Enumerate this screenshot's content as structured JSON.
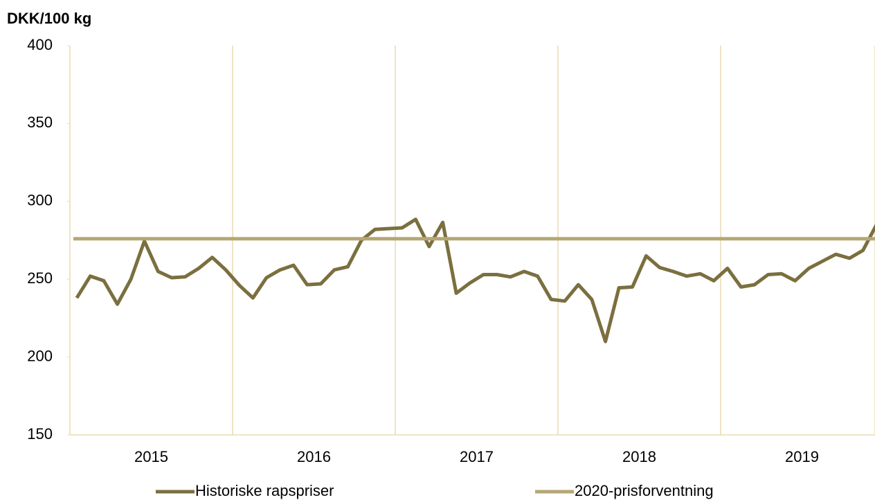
{
  "chart_data": {
    "type": "line",
    "y_label": "DKK/100 kg",
    "categories": [
      "2015",
      "2016",
      "2017",
      "2018",
      "2019"
    ],
    "xlim": [
      2015,
      2020
    ],
    "x": [
      2015.042,
      2015.125,
      2015.208,
      2015.292,
      2015.375,
      2015.458,
      2015.542,
      2015.625,
      2015.708,
      2015.792,
      2015.875,
      2015.958,
      2016.042,
      2016.125,
      2016.208,
      2016.292,
      2016.375,
      2016.458,
      2016.542,
      2016.625,
      2016.708,
      2016.792,
      2016.875,
      2016.958,
      2017.042,
      2017.125,
      2017.208,
      2017.292,
      2017.375,
      2017.458,
      2017.542,
      2017.625,
      2017.708,
      2017.792,
      2017.875,
      2017.958,
      2018.042,
      2018.125,
      2018.208,
      2018.292,
      2018.375,
      2018.458,
      2018.542,
      2018.625,
      2018.708,
      2018.792,
      2018.875,
      2018.958,
      2019.042,
      2019.125,
      2019.208,
      2019.292,
      2019.375,
      2019.458,
      2019.542,
      2019.625,
      2019.708,
      2019.792,
      2019.875,
      2019.958
    ],
    "series": [
      {
        "name": "Historiske rapspriser",
        "color": "#7b6f3f",
        "values": [
          238,
          252,
          249,
          234,
          250,
          274.5,
          255,
          251,
          251.5,
          257,
          264,
          256,
          246,
          238,
          251,
          256,
          259,
          246.5,
          247,
          256,
          258,
          275,
          282,
          282.5,
          283,
          288.5,
          271,
          286.5,
          241,
          247.5,
          253,
          253,
          251.5,
          255,
          252,
          237,
          236,
          246.5,
          237,
          210,
          244.5,
          245,
          265,
          257.5,
          255,
          252,
          253.5,
          249,
          257,
          245,
          246.5,
          253,
          253.5,
          249,
          257,
          261.5,
          266,
          263.5,
          268.5,
          285
        ]
      },
      {
        "name": "2020-prisforventning",
        "color": "#b5a774",
        "value": 276
      }
    ],
    "ylim": [
      150,
      400
    ],
    "yticks": [
      150,
      200,
      250,
      300,
      350,
      400
    ],
    "grid": "x"
  }
}
